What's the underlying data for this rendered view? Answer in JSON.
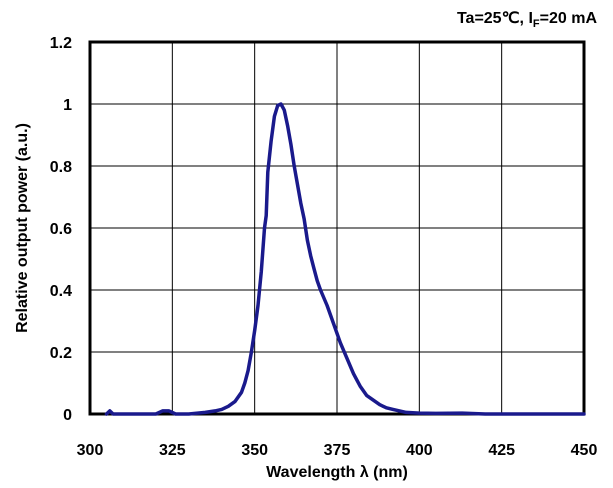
{
  "chart_data": {
    "type": "line",
    "conditions": {
      "text": "Ta=25℃, I",
      "subscript": "F",
      "rest": "=20 mA"
    },
    "xlabel": "Wavelength λ  (nm)",
    "ylabel": "Relative output power (a.u.)",
    "xlim": [
      300,
      450
    ],
    "ylim": [
      0,
      1.2
    ],
    "x_ticks": [
      "300",
      "325",
      "350",
      "375",
      "400",
      "425",
      "450"
    ],
    "y_ticks": [
      "0",
      "0.2",
      "0.4",
      "0.6",
      "0.8",
      "1",
      "1.2"
    ],
    "grid": true,
    "line_color": "#1a1a8c",
    "series": [
      {
        "x": [
          305,
          306,
          307,
          320,
          322,
          324,
          326,
          330,
          335,
          338,
          340,
          342,
          344,
          346,
          347,
          348,
          349,
          350,
          351,
          352,
          353,
          353.5,
          354,
          355,
          356,
          357,
          358,
          359,
          360,
          361,
          362,
          363,
          364,
          365,
          366,
          367,
          368,
          369,
          370,
          372,
          374,
          376,
          378,
          380,
          382,
          384,
          386,
          388,
          390,
          392,
          394,
          396,
          400,
          405,
          413,
          420,
          430,
          440,
          450
        ],
        "y": [
          0.0,
          0.01,
          0.0,
          0.0,
          0.01,
          0.01,
          0.0,
          0.0,
          0.005,
          0.01,
          0.015,
          0.025,
          0.04,
          0.07,
          0.1,
          0.14,
          0.2,
          0.27,
          0.35,
          0.46,
          0.6,
          0.64,
          0.78,
          0.88,
          0.96,
          0.995,
          1.0,
          0.98,
          0.93,
          0.87,
          0.8,
          0.74,
          0.68,
          0.63,
          0.56,
          0.51,
          0.47,
          0.43,
          0.4,
          0.35,
          0.29,
          0.23,
          0.18,
          0.13,
          0.09,
          0.06,
          0.045,
          0.03,
          0.02,
          0.015,
          0.01,
          0.005,
          0.003,
          0.002,
          0.003,
          0.0,
          0.0,
          0.0,
          0.0
        ]
      }
    ]
  }
}
